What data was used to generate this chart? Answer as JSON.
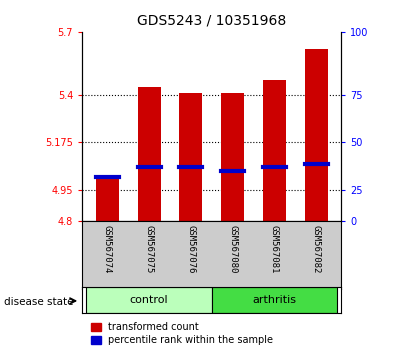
{
  "title": "GDS5243 / 10351968",
  "samples": [
    "GSM567074",
    "GSM567075",
    "GSM567076",
    "GSM567080",
    "GSM567081",
    "GSM567082"
  ],
  "groups": [
    "control",
    "control",
    "control",
    "arthritis",
    "arthritis",
    "arthritis"
  ],
  "bar_values": [
    5.02,
    5.44,
    5.41,
    5.41,
    5.47,
    5.62
  ],
  "percentile_values": [
    5.01,
    5.06,
    5.06,
    5.04,
    5.06,
    5.07
  ],
  "ymin": 4.8,
  "ymax": 5.7,
  "yticks_left": [
    4.8,
    4.95,
    5.175,
    5.4,
    5.7
  ],
  "yticks_right": [
    0,
    25,
    50,
    75,
    100
  ],
  "bar_color": "#cc0000",
  "percentile_color": "#0000cc",
  "bar_width": 0.55,
  "control_color": "#bbffbb",
  "arthritis_color": "#44dd44",
  "xlabel_area_color": "#cccccc",
  "tick_label_fontsize": 7,
  "title_fontsize": 10,
  "legend_fontsize": 7
}
